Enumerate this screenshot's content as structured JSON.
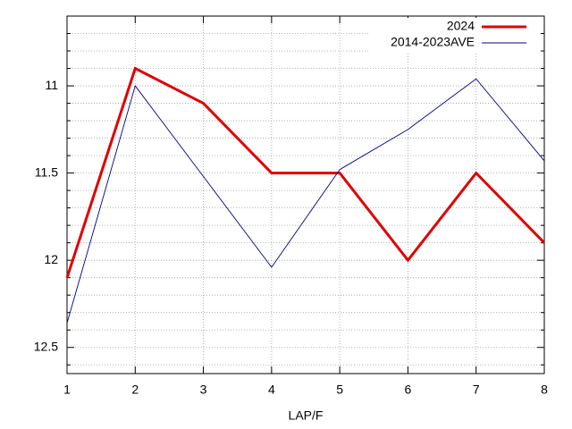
{
  "chart_data": {
    "type": "line",
    "xlabel": "LAP/F",
    "x": [
      1,
      2,
      3,
      4,
      5,
      6,
      7,
      8
    ],
    "xlim": [
      1,
      8
    ],
    "xticks": [
      1,
      2,
      3,
      4,
      5,
      6,
      7,
      8
    ],
    "ylim": [
      10.6,
      12.65
    ],
    "yticks": [
      11,
      11.5,
      12,
      12.5
    ],
    "y_inverted": true,
    "grid": true,
    "legend": "top-right",
    "series": [
      {
        "name": "2024",
        "color": "#e00000",
        "values": [
          12.1,
          10.9,
          11.1,
          11.5,
          11.5,
          12.0,
          11.5,
          11.9
        ]
      },
      {
        "name": "2014-2023AVE",
        "color": "#00008b",
        "values": [
          12.36,
          11.0,
          11.52,
          12.04,
          11.48,
          11.25,
          10.96,
          11.43
        ]
      }
    ]
  }
}
